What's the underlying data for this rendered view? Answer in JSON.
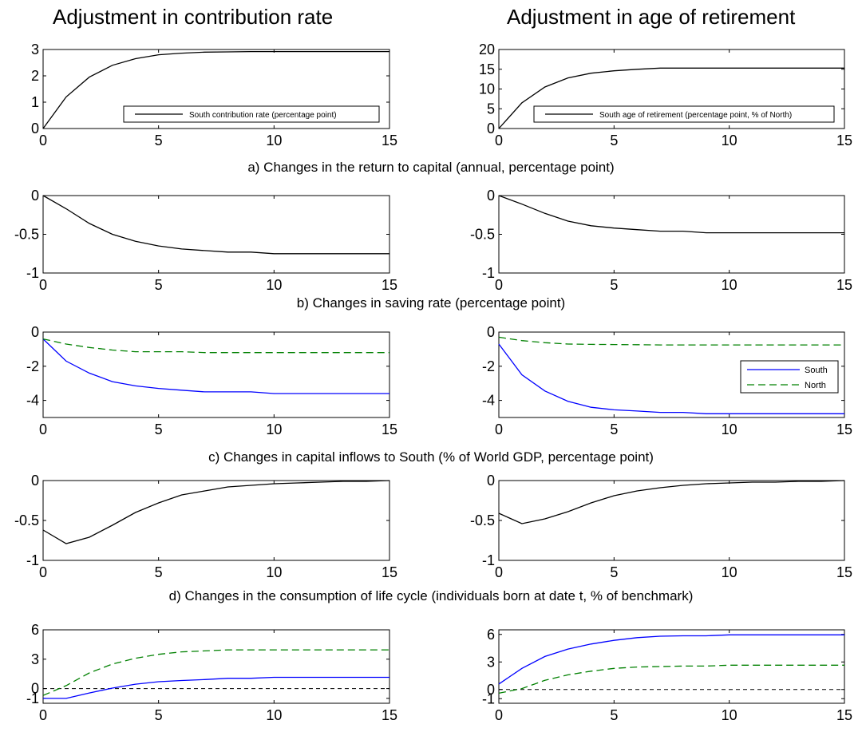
{
  "figure": {
    "column_titles": [
      "Adjustment in contribution rate",
      "Adjustment in age of retirement"
    ],
    "row_captions": [
      "a) Changes in the return to capital (annual, percentage point)",
      "b) Changes in saving rate (percentage point)",
      "c) Changes in capital inflows to South (% of World GDP, percentage point)",
      "d) Changes in the consumption of life cycle (individuals born at date t, % of benchmark)"
    ]
  },
  "colors": {
    "black": "#000000",
    "south": "#0000ff",
    "north": "#008000"
  },
  "chart_data": [
    {
      "type": "line",
      "row": 0,
      "col": 0,
      "xlim": [
        0,
        15
      ],
      "ylim": [
        0,
        3
      ],
      "xticks": [
        0,
        5,
        10,
        15
      ],
      "yticks": [
        0,
        1,
        2,
        3
      ],
      "zero_line": false,
      "legend_position": "bottom-right",
      "series": [
        {
          "name": "South contribution rate (percentage point)",
          "color": "#000000",
          "dash": "solid",
          "x": [
            0,
            1,
            2,
            3,
            4,
            5,
            6,
            7,
            8,
            9,
            10,
            11,
            12,
            13,
            14,
            15
          ],
          "y": [
            0,
            1.2,
            1.95,
            2.4,
            2.65,
            2.8,
            2.86,
            2.9,
            2.91,
            2.92,
            2.92,
            2.92,
            2.92,
            2.92,
            2.92,
            2.92
          ]
        }
      ]
    },
    {
      "type": "line",
      "row": 0,
      "col": 1,
      "xlim": [
        0,
        15
      ],
      "ylim": [
        0,
        20
      ],
      "xticks": [
        0,
        5,
        10,
        15
      ],
      "yticks": [
        0,
        5,
        10,
        15,
        20
      ],
      "zero_line": false,
      "legend_position": "bottom-right",
      "series": [
        {
          "name": "South age of retirement (percentage point, % of North)",
          "color": "#000000",
          "dash": "solid",
          "x": [
            0,
            1,
            2,
            3,
            4,
            5,
            6,
            7,
            8,
            9,
            10,
            11,
            12,
            13,
            14,
            15
          ],
          "y": [
            0,
            6.5,
            10.5,
            12.8,
            14,
            14.6,
            15,
            15.3,
            15.3,
            15.3,
            15.3,
            15.3,
            15.3,
            15.3,
            15.3,
            15.3
          ]
        }
      ]
    },
    {
      "type": "line",
      "row": 1,
      "col": 0,
      "xlim": [
        0,
        15
      ],
      "ylim": [
        -1,
        0
      ],
      "xticks": [
        0,
        5,
        10,
        15
      ],
      "yticks": [
        0,
        -0.5,
        -1
      ],
      "ytick_labels": [
        "0",
        "-0.5",
        "-1"
      ],
      "zero_line": true,
      "series": [
        {
          "color": "#000000",
          "dash": "solid",
          "x": [
            0,
            1,
            2,
            3,
            4,
            5,
            6,
            7,
            8,
            9,
            10,
            11,
            12,
            13,
            14,
            15
          ],
          "y": [
            0,
            -0.17,
            -0.36,
            -0.5,
            -0.59,
            -0.65,
            -0.69,
            -0.71,
            -0.73,
            -0.73,
            -0.75,
            -0.75,
            -0.75,
            -0.75,
            -0.75,
            -0.75
          ]
        }
      ]
    },
    {
      "type": "line",
      "row": 1,
      "col": 1,
      "xlim": [
        0,
        15
      ],
      "ylim": [
        -1,
        0
      ],
      "xticks": [
        0,
        5,
        10,
        15
      ],
      "yticks": [
        0,
        -0.5,
        -1
      ],
      "ytick_labels": [
        "0",
        "-0.5",
        "-1"
      ],
      "zero_line": true,
      "series": [
        {
          "color": "#000000",
          "dash": "solid",
          "x": [
            0,
            1,
            2,
            3,
            4,
            5,
            6,
            7,
            8,
            9,
            10,
            11,
            12,
            13,
            14,
            15
          ],
          "y": [
            0,
            -0.11,
            -0.23,
            -0.33,
            -0.39,
            -0.42,
            -0.44,
            -0.46,
            -0.46,
            -0.48,
            -0.48,
            -0.48,
            -0.48,
            -0.48,
            -0.48,
            -0.48
          ]
        }
      ]
    },
    {
      "type": "line",
      "row": 2,
      "col": 0,
      "xlim": [
        0,
        15
      ],
      "ylim": [
        -5,
        0
      ],
      "xticks": [
        0,
        5,
        10,
        15
      ],
      "yticks": [
        0,
        -2,
        -4
      ],
      "ytick_labels": [
        "0",
        "-2",
        "-4"
      ],
      "zero_line": false,
      "series": [
        {
          "color": "#0000ff",
          "dash": "solid",
          "x": [
            0,
            1,
            2,
            3,
            4,
            5,
            6,
            7,
            8,
            9,
            10,
            11,
            12,
            13,
            14,
            15
          ],
          "y": [
            -0.4,
            -1.7,
            -2.4,
            -2.9,
            -3.15,
            -3.3,
            -3.4,
            -3.5,
            -3.5,
            -3.5,
            -3.6,
            -3.6,
            -3.6,
            -3.6,
            -3.6,
            -3.6
          ]
        },
        {
          "color": "#008000",
          "dash": "dashed",
          "x": [
            0,
            1,
            2,
            3,
            4,
            5,
            6,
            7,
            8,
            9,
            10,
            11,
            12,
            13,
            14,
            15
          ],
          "y": [
            -0.4,
            -0.7,
            -0.9,
            -1.05,
            -1.15,
            -1.15,
            -1.15,
            -1.2,
            -1.2,
            -1.2,
            -1.2,
            -1.2,
            -1.2,
            -1.2,
            -1.2,
            -1.2
          ]
        }
      ]
    },
    {
      "type": "line",
      "row": 2,
      "col": 1,
      "xlim": [
        0,
        15
      ],
      "ylim": [
        -5,
        0
      ],
      "xticks": [
        0,
        5,
        10,
        15
      ],
      "yticks": [
        0,
        -2,
        -4
      ],
      "ytick_labels": [
        "0",
        "-2",
        "-4"
      ],
      "zero_line": false,
      "legend_position": "right",
      "series": [
        {
          "name": "South",
          "color": "#0000ff",
          "dash": "solid",
          "x": [
            0,
            1,
            2,
            3,
            4,
            5,
            6,
            7,
            8,
            9,
            10,
            11,
            12,
            13,
            14,
            15
          ],
          "y": [
            -0.7,
            -2.5,
            -3.45,
            -4.05,
            -4.4,
            -4.55,
            -4.62,
            -4.7,
            -4.7,
            -4.78,
            -4.78,
            -4.78,
            -4.78,
            -4.78,
            -4.78,
            -4.78
          ]
        },
        {
          "name": "North",
          "color": "#008000",
          "dash": "dashed",
          "x": [
            0,
            1,
            2,
            3,
            4,
            5,
            6,
            7,
            8,
            9,
            10,
            11,
            12,
            13,
            14,
            15
          ],
          "y": [
            -0.3,
            -0.5,
            -0.62,
            -0.7,
            -0.72,
            -0.73,
            -0.74,
            -0.75,
            -0.75,
            -0.75,
            -0.75,
            -0.75,
            -0.75,
            -0.75,
            -0.75,
            -0.75
          ]
        }
      ]
    },
    {
      "type": "line",
      "row": 3,
      "col": 0,
      "xlim": [
        0,
        15
      ],
      "ylim": [
        -1,
        0
      ],
      "xticks": [
        0,
        5,
        10,
        15
      ],
      "yticks": [
        0,
        -0.5,
        -1
      ],
      "ytick_labels": [
        "0",
        "-0.5",
        "-1"
      ],
      "zero_line": true,
      "series": [
        {
          "color": "#000000",
          "dash": "solid",
          "x": [
            0,
            1,
            2,
            3,
            4,
            5,
            6,
            7,
            8,
            9,
            10,
            11,
            12,
            13,
            14,
            15
          ],
          "y": [
            -0.62,
            -0.79,
            -0.71,
            -0.56,
            -0.4,
            -0.28,
            -0.18,
            -0.13,
            -0.08,
            -0.06,
            -0.04,
            -0.03,
            -0.02,
            -0.01,
            -0.01,
            0
          ]
        }
      ]
    },
    {
      "type": "line",
      "row": 3,
      "col": 1,
      "xlim": [
        0,
        15
      ],
      "ylim": [
        -1,
        0
      ],
      "xticks": [
        0,
        5,
        10,
        15
      ],
      "yticks": [
        0,
        -0.5,
        -1
      ],
      "ytick_labels": [
        "0",
        "-0.5",
        "-1"
      ],
      "zero_line": true,
      "series": [
        {
          "color": "#000000",
          "dash": "solid",
          "x": [
            0,
            1,
            2,
            3,
            4,
            5,
            6,
            7,
            8,
            9,
            10,
            11,
            12,
            13,
            14,
            15
          ],
          "y": [
            -0.41,
            -0.54,
            -0.48,
            -0.39,
            -0.28,
            -0.19,
            -0.13,
            -0.09,
            -0.06,
            -0.04,
            -0.03,
            -0.02,
            -0.02,
            -0.01,
            -0.01,
            0
          ]
        }
      ]
    },
    {
      "type": "line",
      "row": 4,
      "col": 0,
      "xlim": [
        0,
        15
      ],
      "ylim": [
        -1.5,
        6
      ],
      "xticks": [
        0,
        5,
        10,
        15
      ],
      "yticks": [
        6,
        3,
        0,
        -1
      ],
      "ytick_labels": [
        "6",
        "3",
        "0",
        "-1"
      ],
      "zero_line": true,
      "series": [
        {
          "color": "#0000ff",
          "dash": "solid",
          "x": [
            0,
            1,
            2,
            3,
            4,
            5,
            6,
            7,
            8,
            9,
            10,
            11,
            12,
            13,
            14,
            15
          ],
          "y": [
            -1,
            -1,
            -0.45,
            0.05,
            0.45,
            0.7,
            0.82,
            0.92,
            1.05,
            1.05,
            1.15,
            1.15,
            1.15,
            1.15,
            1.15,
            1.15
          ]
        },
        {
          "color": "#008000",
          "dash": "dashed",
          "x": [
            0,
            1,
            2,
            3,
            4,
            5,
            6,
            7,
            8,
            9,
            10,
            11,
            12,
            13,
            14,
            15
          ],
          "y": [
            -0.7,
            0.3,
            1.6,
            2.5,
            3.1,
            3.5,
            3.75,
            3.85,
            3.95,
            3.95,
            3.95,
            3.95,
            3.95,
            3.95,
            3.95,
            3.95
          ]
        }
      ]
    },
    {
      "type": "line",
      "row": 4,
      "col": 1,
      "xlim": [
        0,
        15
      ],
      "ylim": [
        -1.5,
        6.5
      ],
      "xticks": [
        0,
        5,
        10,
        15
      ],
      "yticks": [
        6,
        3,
        0,
        -1
      ],
      "ytick_labels": [
        "6",
        "3",
        "0",
        "-1"
      ],
      "zero_line": true,
      "series": [
        {
          "color": "#0000ff",
          "dash": "solid",
          "x": [
            0,
            1,
            2,
            3,
            4,
            5,
            6,
            7,
            8,
            9,
            10,
            11,
            12,
            13,
            14,
            15
          ],
          "y": [
            0.6,
            2.3,
            3.6,
            4.4,
            4.95,
            5.35,
            5.65,
            5.8,
            5.85,
            5.85,
            5.95,
            5.95,
            5.95,
            5.95,
            5.95,
            5.95
          ]
        },
        {
          "color": "#008000",
          "dash": "dashed",
          "x": [
            0,
            1,
            2,
            3,
            4,
            5,
            6,
            7,
            8,
            9,
            10,
            11,
            12,
            13,
            14,
            15
          ],
          "y": [
            -0.4,
            0.1,
            1.0,
            1.6,
            2.0,
            2.3,
            2.45,
            2.5,
            2.55,
            2.55,
            2.65,
            2.65,
            2.65,
            2.65,
            2.65,
            2.65
          ]
        }
      ]
    }
  ]
}
